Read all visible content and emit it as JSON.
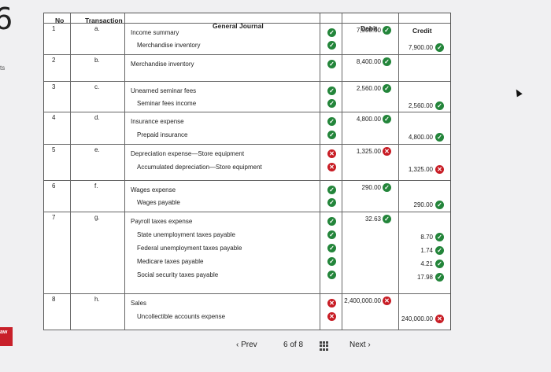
{
  "page": {
    "step_number": "6",
    "side_fragment": "ts",
    "logo_text": "aw"
  },
  "headers": {
    "no": "No",
    "transaction": "Transaction",
    "general_journal": "General Journal",
    "debit": "Debit",
    "credit": "Credit"
  },
  "rows": [
    {
      "no": "1",
      "tx": "a.",
      "lines": [
        {
          "account": "Income summary",
          "debit": "7,900.00",
          "status": "ok"
        },
        {
          "account": "Merchandise inventory",
          "credit": "7,900.00",
          "status": "ok"
        }
      ]
    },
    {
      "no": "2",
      "tx": "b.",
      "lines": [
        {
          "account": "Merchandise inventory",
          "debit": "8,400.00",
          "status": "ok"
        }
      ]
    },
    {
      "no": "3",
      "tx": "c.",
      "lines": [
        {
          "account": "Unearned seminar fees",
          "debit": "2,560.00",
          "status": "ok"
        },
        {
          "account": "Seminar fees income",
          "credit": "2,560.00",
          "status": "ok"
        }
      ]
    },
    {
      "no": "4",
      "tx": "d.",
      "lines": [
        {
          "account": "Insurance expense",
          "debit": "4,800.00",
          "status": "ok"
        },
        {
          "account": "Prepaid insurance",
          "credit": "4,800.00",
          "status": "ok"
        }
      ]
    },
    {
      "no": "5",
      "tx": "e.",
      "lines": [
        {
          "account": "Depreciation expense—Store equipment",
          "debit": "1,325.00",
          "status": "bad"
        },
        {
          "account": "Accumulated depreciation—Store equipment",
          "credit": "1,325.00",
          "status": "bad"
        }
      ]
    },
    {
      "no": "6",
      "tx": "f.",
      "lines": [
        {
          "account": "Wages expense",
          "debit": "290.00",
          "status": "ok"
        },
        {
          "account": "Wages payable",
          "credit": "290.00",
          "status": "ok"
        }
      ]
    },
    {
      "no": "7",
      "tx": "g.",
      "lines": [
        {
          "account": "Payroll taxes expense",
          "debit": "32.63",
          "status": "ok"
        },
        {
          "account": "State unemployment taxes payable",
          "credit": "8.70",
          "status": "ok"
        },
        {
          "account": "Federal unemployment taxes payable",
          "credit": "1.74",
          "status": "ok"
        },
        {
          "account": "Medicare taxes payable",
          "credit": "4.21",
          "status": "ok"
        },
        {
          "account": "Social security taxes payable",
          "credit": "17.98",
          "status": "ok"
        }
      ]
    },
    {
      "no": "8",
      "tx": "h.",
      "lines": [
        {
          "account": "Sales",
          "debit": "2,400,000.00",
          "status": "bad"
        },
        {
          "account": "Uncollectible accounts expense",
          "credit": "240,000.00",
          "status": "bad"
        }
      ]
    }
  ],
  "pager": {
    "prev": "Prev",
    "page": "6",
    "of_label": "of",
    "total": "8",
    "next": "Next"
  },
  "colors": {
    "ok": "#23853a",
    "bad": "#c81d25"
  }
}
